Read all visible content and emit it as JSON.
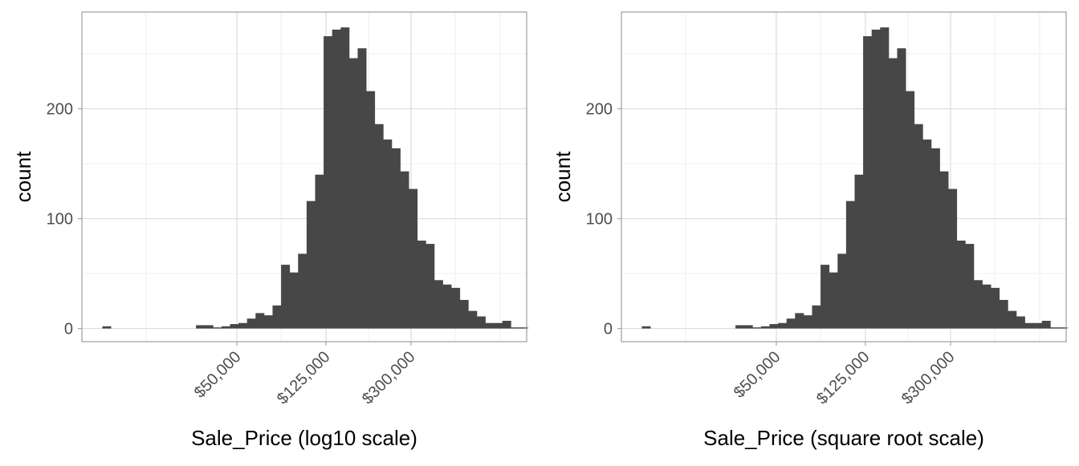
{
  "chart_data": [
    {
      "type": "bar",
      "xlabel": "Sale_Price (log10 scale)",
      "ylabel": "count",
      "ylim": [
        -12,
        288
      ],
      "yticks": [
        0,
        100,
        200
      ],
      "xticks": [
        "$50,000",
        "$125,000",
        "$300,000"
      ],
      "grid": true,
      "bins": 50,
      "values": [
        2,
        0,
        0,
        0,
        0,
        0,
        0,
        0,
        0,
        0,
        0,
        3,
        3,
        1,
        2,
        4,
        5,
        9,
        14,
        12,
        21,
        58,
        51,
        68,
        116,
        140,
        266,
        272,
        274,
        246,
        255,
        216,
        186,
        172,
        164,
        143,
        127,
        80,
        77,
        44,
        40,
        37,
        26,
        16,
        11,
        5,
        5,
        7,
        1,
        1
      ]
    },
    {
      "type": "bar",
      "xlabel": "Sale_Price (square root scale)",
      "ylabel": "count",
      "ylim": [
        -12,
        288
      ],
      "yticks": [
        0,
        100,
        200
      ],
      "xticks": [
        "$50,000",
        "$125,000",
        "$300,000"
      ],
      "grid": true,
      "bins": 50,
      "values": [
        2,
        0,
        0,
        0,
        0,
        0,
        0,
        0,
        0,
        0,
        0,
        3,
        3,
        1,
        2,
        4,
        5,
        9,
        14,
        12,
        21,
        58,
        51,
        68,
        116,
        140,
        266,
        272,
        274,
        246,
        255,
        216,
        186,
        172,
        164,
        143,
        127,
        80,
        77,
        44,
        40,
        37,
        26,
        16,
        11,
        5,
        5,
        7,
        1,
        1
      ]
    }
  ],
  "colors": {
    "bar_fill": "#474747",
    "panel_border": "#a6a6a6",
    "grid_major": "#dcdcdc",
    "grid_minor": "#efefef",
    "text": "#000000",
    "tick_text": "#4d4d4d"
  }
}
